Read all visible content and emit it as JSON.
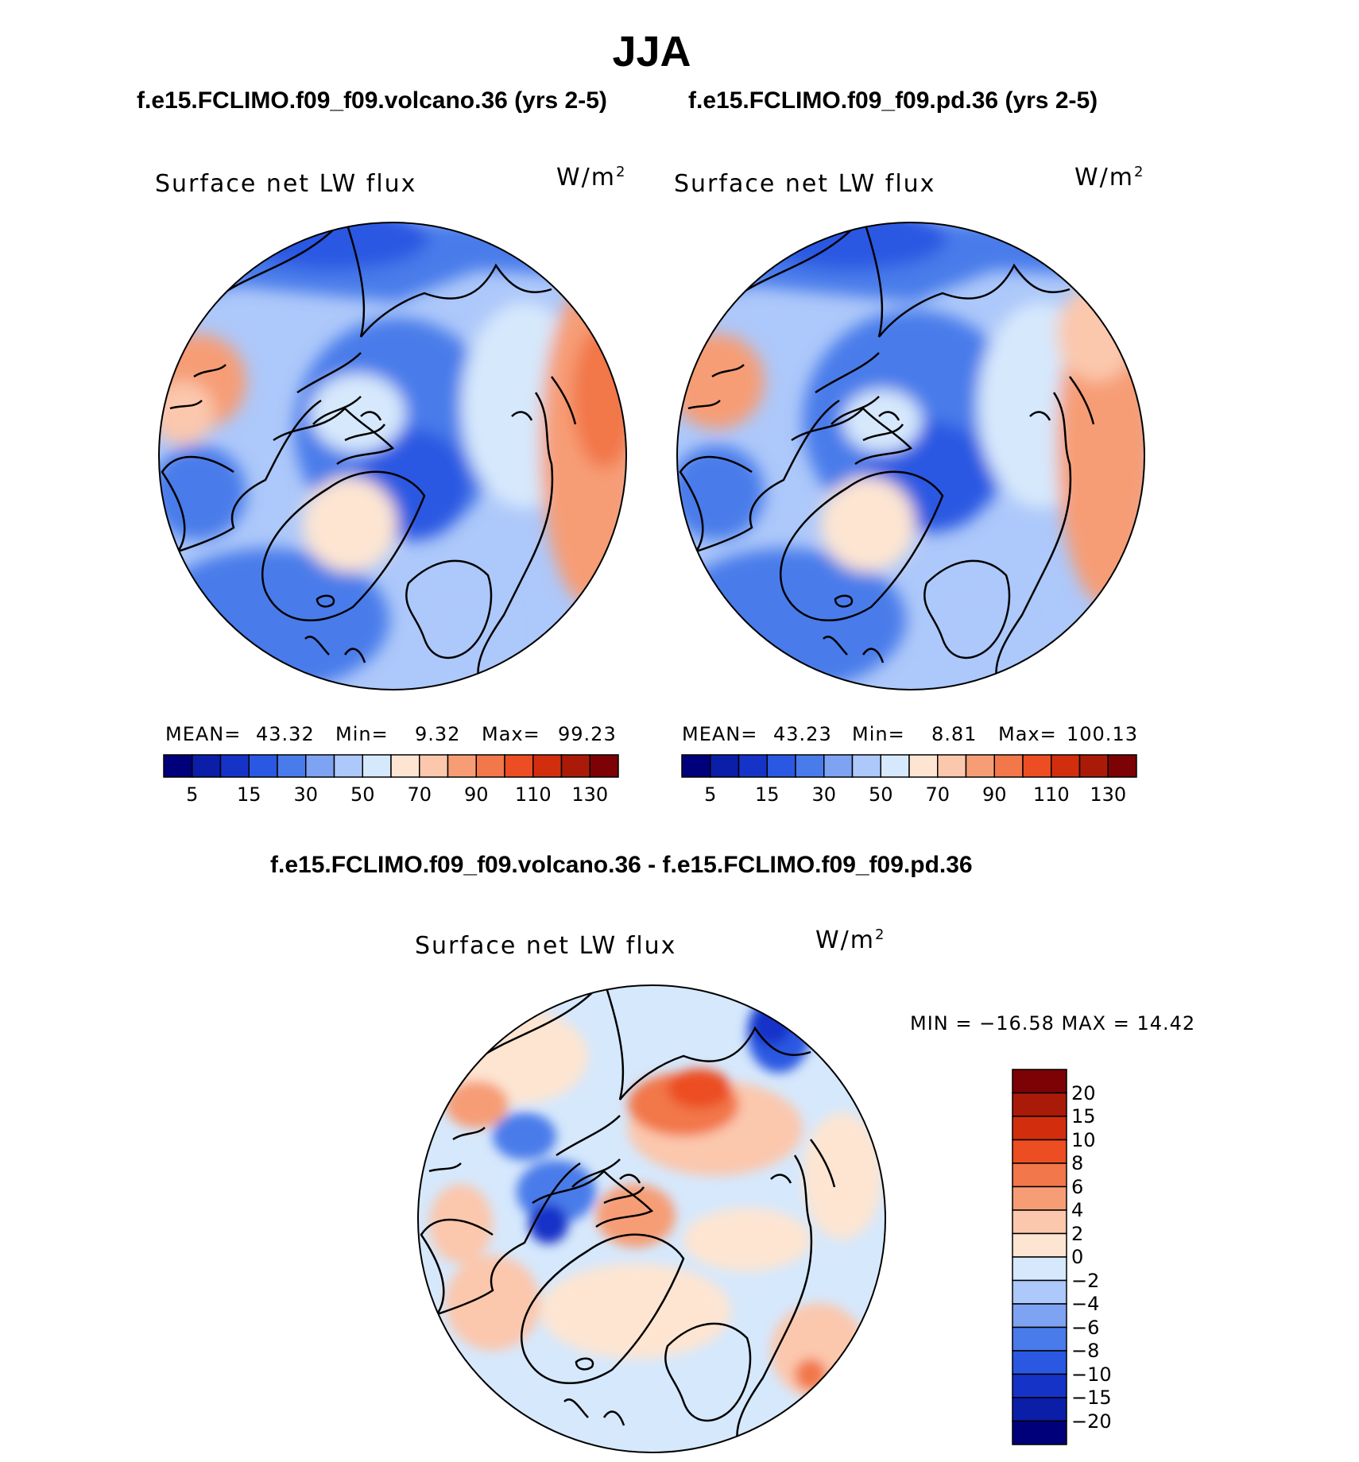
{
  "figure": {
    "title": "JJA",
    "diff_title": "f.e15.FCLIMO.f09_f09.volcano.36 - f.e15.FCLIMO.f09_f09.pd.36"
  },
  "panels": {
    "volcano": {
      "case_title": "f.e15.FCLIMO.f09_f09.volcano.36 (yrs 2-5)",
      "variable": "Surface net LW flux",
      "units": "W/m",
      "units_exp": "2",
      "stats": {
        "mean_label": "MEAN=",
        "mean": "43.32",
        "min_label": "Min=",
        "min": "9.32",
        "max_label": "Max=",
        "max": "99.23"
      }
    },
    "pd": {
      "case_title": "f.e15.FCLIMO.f09_f09.pd.36 (yrs 2-5)",
      "variable": "Surface net LW flux",
      "units": "W/m",
      "units_exp": "2",
      "stats": {
        "mean_label": "MEAN=",
        "mean": "43.23",
        "min_label": "Min=",
        "min": "8.81",
        "max_label": "Max=",
        "max": "100.13"
      }
    },
    "diff": {
      "variable": "Surface net LW flux",
      "units": "W/m",
      "units_exp": "2",
      "minmax": "MIN = −16.58 MAX =   14.42"
    }
  },
  "colorbars": {
    "abs": {
      "colors": [
        "#00007a",
        "#0a1ea8",
        "#1633c8",
        "#2a58e2",
        "#4a7bea",
        "#7ea3f2",
        "#adc8fa",
        "#d6e8fc",
        "#fde5d2",
        "#fbc7ad",
        "#f69d76",
        "#f2774a",
        "#ec4d22",
        "#d22e0e",
        "#a91b08",
        "#7c0206"
      ],
      "tick_labels": [
        "5",
        "15",
        "30",
        "50",
        "70",
        "90",
        "110",
        "130"
      ]
    },
    "diff": {
      "colors": [
        "#00007a",
        "#0a1ea8",
        "#1633c8",
        "#2a58e2",
        "#4a7bea",
        "#7ea3f2",
        "#adc8fa",
        "#d6e8fc",
        "#fde5d2",
        "#fbc7ad",
        "#f69d76",
        "#f2774a",
        "#ec4d22",
        "#d22e0e",
        "#a91b08",
        "#7c0206"
      ],
      "tick_labels": [
        "20",
        "15",
        "10",
        "8",
        "6",
        "4",
        "2",
        "0",
        "−2",
        "−4",
        "−6",
        "−8",
        "−10",
        "−15",
        "−20"
      ]
    }
  },
  "map_colors": {
    "deep_blue": "#1633c8",
    "blue": "#2a58e2",
    "mid_blue": "#4a7bea",
    "light_blue": "#7ea3f2",
    "pale_blue": "#adc8fa",
    "very_pale_blue": "#d6e8fc",
    "pale_orange": "#fde5d2",
    "light_orange": "#fbc7ad",
    "orange": "#f69d76",
    "dark_orange": "#f2774a",
    "red": "#ec4d22",
    "coast": "#000000"
  }
}
